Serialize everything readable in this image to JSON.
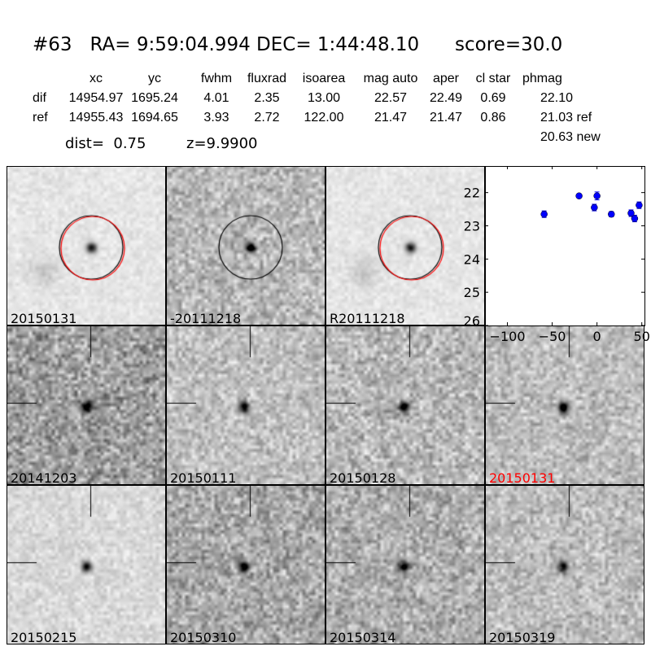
{
  "title": "#63   RA= 9:59:04.994 DEC= 1:44:48.10      score=30.0",
  "table": {
    "headers": [
      "xc",
      "yc",
      "fwhm",
      "fluxrad",
      "isoarea",
      "mag auto",
      "aper",
      "cl star",
      "phmag"
    ],
    "rows": [
      {
        "label": "dif",
        "values": [
          "14954.97",
          "1695.24",
          "4.01",
          "2.35",
          "13.00",
          "22.57",
          "22.49",
          "0.69",
          "22.10"
        ]
      },
      {
        "label": "ref",
        "values": [
          "14955.43",
          "1694.65",
          "3.93",
          "2.72",
          "122.00",
          "21.47",
          "21.47",
          "0.86",
          "21.03 ref"
        ]
      }
    ],
    "extra": "20.63 new",
    "dist": "dist=  0.75",
    "z": "z=9.9900"
  },
  "stamps": [
    {
      "label": "20150131",
      "color": "#000000",
      "noise": 0.05,
      "bg": 0.9,
      "galaxy": true,
      "circles": [
        "black",
        "red"
      ]
    },
    {
      "label": "-20111218",
      "color": "#000000",
      "noise": 0.16,
      "bg": 0.72,
      "circles": [
        "black"
      ]
    },
    {
      "label": "R20111218",
      "color": "#000000",
      "noise": 0.05,
      "bg": 0.9,
      "galaxy": true,
      "circles": [
        "black",
        "red"
      ]
    },
    null,
    {
      "label": "20141203",
      "color": "#000000",
      "noise": 0.2,
      "bg": 0.62,
      "cross": true
    },
    {
      "label": "20150111",
      "color": "#000000",
      "noise": 0.14,
      "bg": 0.75,
      "cross": true
    },
    {
      "label": "20150128",
      "color": "#000000",
      "noise": 0.17,
      "bg": 0.72,
      "cross": true
    },
    {
      "label": "20150131",
      "color": "#ff0000",
      "noise": 0.14,
      "bg": 0.74,
      "cross": true
    },
    {
      "label": "20150215",
      "color": "#000000",
      "noise": 0.08,
      "bg": 0.85,
      "cross": true
    },
    {
      "label": "20150310",
      "color": "#000000",
      "noise": 0.18,
      "bg": 0.66,
      "cross": true
    },
    {
      "label": "20150314",
      "color": "#000000",
      "noise": 0.17,
      "bg": 0.68,
      "cross": true
    },
    {
      "label": "20150319",
      "color": "#000000",
      "noise": 0.14,
      "bg": 0.74,
      "cross": true
    }
  ],
  "chart_data": {
    "type": "scatter",
    "x": [
      -59,
      -20,
      -3,
      0,
      16,
      38,
      42,
      47
    ],
    "y": [
      22.65,
      22.1,
      22.45,
      22.1,
      22.65,
      22.62,
      22.78,
      22.38
    ],
    "yerr": [
      0.1,
      0.05,
      0.1,
      0.12,
      0.08,
      0.1,
      0.1,
      0.1
    ],
    "xlim": [
      -125,
      53
    ],
    "ylim": [
      26,
      21.2
    ],
    "xticks": [
      "−100",
      "−50",
      "0",
      "50"
    ],
    "xtickvals": [
      -100,
      -50,
      0,
      50
    ],
    "yticks": [
      "22",
      "23",
      "24",
      "25",
      "26"
    ],
    "ytickvals": [
      22,
      23,
      24,
      25,
      26
    ],
    "marker_color": "#0000ff"
  }
}
